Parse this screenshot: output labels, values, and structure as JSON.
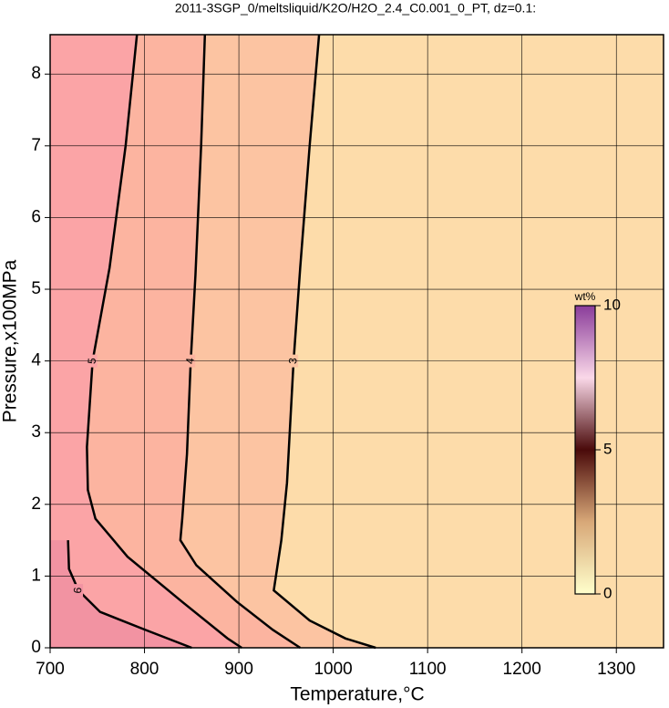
{
  "chart_data": {
    "type": "contour",
    "title": "2011-3SGP_0/meltsliquid/K2O/H2O_2.4_C0.001_0_PT, dz=0.1:",
    "x_label": "Temperature,°C",
    "y_label": "Pressure,x100MPa",
    "xlim": [
      700,
      1350
    ],
    "ylim": [
      0,
      8.55
    ],
    "xticks": [
      700,
      800,
      900,
      1000,
      1100,
      1200,
      1300
    ],
    "yticks": [
      0,
      1,
      2,
      3,
      4,
      5,
      6,
      7,
      8
    ],
    "grid": true,
    "background": "#fddcaa",
    "contours": [
      {
        "level": 3,
        "fill": "#fcc4a2",
        "x": [
          985,
          975,
          965,
          958,
          951,
          945,
          937,
          975,
          1013,
          1045
        ],
        "y": [
          8.55,
          7,
          5.3,
          4,
          2.3,
          1.5,
          0.8,
          0.38,
          0.13,
          0
        ]
      },
      {
        "level": 4,
        "fill": "#fcb4a0",
        "x": [
          864,
          860,
          854,
          849,
          845,
          840,
          838,
          855,
          898,
          936,
          965
        ],
        "y": [
          8.55,
          7,
          5.2,
          4,
          2.7,
          1.8,
          1.5,
          1.15,
          0.64,
          0.25,
          0
        ]
      },
      {
        "level": 5,
        "fill": "#fba4a6",
        "x": [
          792,
          780,
          763,
          745,
          739,
          740,
          748,
          782,
          840,
          888,
          903
        ],
        "y": [
          8.55,
          7,
          5.3,
          4,
          2.8,
          2.2,
          1.8,
          1.27,
          0.64,
          0.13,
          0
        ]
      },
      {
        "level": 6,
        "fill": "#f293a2",
        "x": [
          719,
          720,
          730,
          753,
          801,
          850
        ],
        "y": [
          1.5,
          1.1,
          0.8,
          0.5,
          0.25,
          0
        ]
      }
    ],
    "colorbar": {
      "label": "wt%",
      "lim": [
        0,
        10
      ],
      "ticks": [
        0,
        5,
        10
      ],
      "stops": [
        {
          "value": 0,
          "color": "#ffffcc"
        },
        {
          "value": 2.5,
          "color": "#d8a878"
        },
        {
          "value": 5,
          "color": "#4a0a0a"
        },
        {
          "value": 7.5,
          "color": "#fad8e8"
        },
        {
          "value": 10,
          "color": "#8a3c9a"
        }
      ]
    }
  }
}
